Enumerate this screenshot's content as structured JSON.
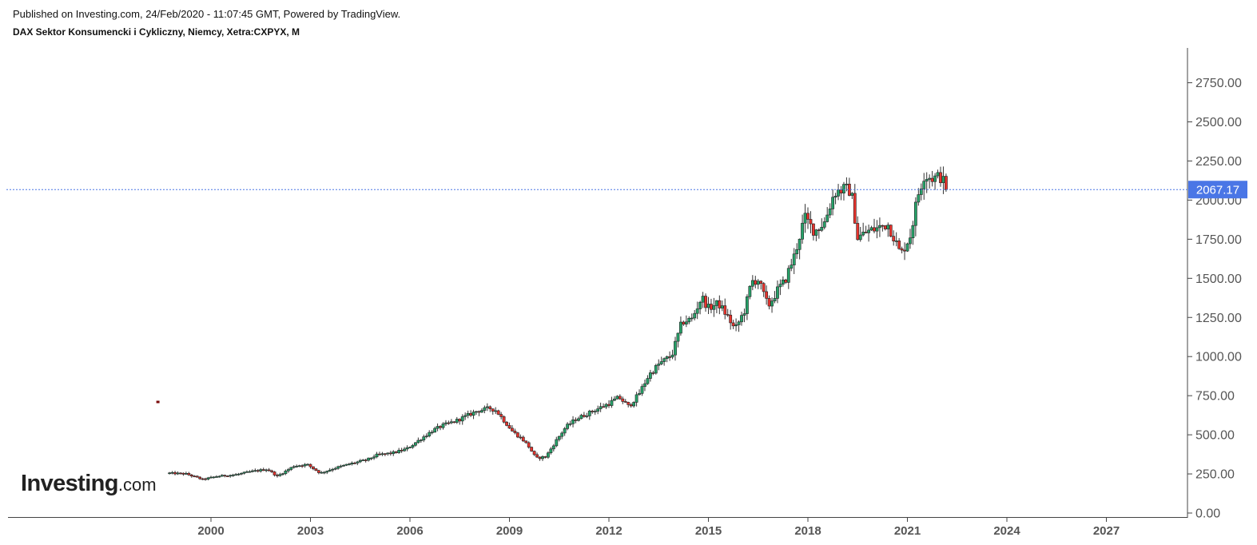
{
  "header": {
    "published": "Published on Investing.com, 24/Feb/2020 - 11:07:45 GMT, Powered by TradingView.",
    "symbol": "DAX Sektor Konsumencki i Cykliczny, Niemcy, Xetra:CXPYX, M"
  },
  "logo": {
    "brand": "Investing",
    "suffix": ".com"
  },
  "colors": {
    "up": "#26a269",
    "down": "#e8332d",
    "outline": "#000000",
    "price_line": "#4a76e6",
    "axis": "#444444"
  },
  "chart_data": {
    "type": "candlestick",
    "interval": "M",
    "last_price": 2067.17,
    "last_price_label": "2067.17",
    "ylim": [
      0,
      3000
    ],
    "y_ticks": [
      {
        "value": 0,
        "label": "0.00"
      },
      {
        "value": 250,
        "label": "250.00"
      },
      {
        "value": 500,
        "label": "500.00"
      },
      {
        "value": 750,
        "label": "750.00"
      },
      {
        "value": 1000,
        "label": "1000.00"
      },
      {
        "value": 1250,
        "label": "1250.00"
      },
      {
        "value": 1500,
        "label": "1500.00"
      },
      {
        "value": 1750,
        "label": "1750.00"
      },
      {
        "value": 2000,
        "label": "2000.00"
      },
      {
        "value": 2250,
        "label": "2250.00"
      },
      {
        "value": 2500,
        "label": "2500.00"
      },
      {
        "value": 2750,
        "label": "2750.00"
      }
    ],
    "x_ticks": [
      {
        "value": 2000,
        "label": "2000"
      },
      {
        "value": 2003,
        "label": "2003"
      },
      {
        "value": 2006,
        "label": "2006"
      },
      {
        "value": 2009,
        "label": "2009"
      },
      {
        "value": 2012,
        "label": "2012"
      },
      {
        "value": 2015,
        "label": "2015"
      },
      {
        "value": 2018,
        "label": "2018"
      },
      {
        "value": 2021,
        "label": "2021"
      },
      {
        "value": 2024,
        "label": "2024"
      },
      {
        "value": 2027,
        "label": "2027"
      }
    ],
    "xlim": [
      1993.9,
      2029.6
    ],
    "outlier": {
      "t": 1998.4,
      "value": 710
    },
    "anchors": [
      [
        1998.75,
        255
      ],
      [
        1999.25,
        250
      ],
      [
        1999.75,
        215
      ],
      [
        2000.2,
        235
      ],
      [
        2000.75,
        245
      ],
      [
        2001.2,
        265
      ],
      [
        2001.7,
        280
      ],
      [
        2002.0,
        235
      ],
      [
        2002.5,
        300
      ],
      [
        2002.9,
        310
      ],
      [
        2003.3,
        255
      ],
      [
        2003.7,
        285
      ],
      [
        2004.2,
        315
      ],
      [
        2004.7,
        340
      ],
      [
        2005.0,
        370
      ],
      [
        2005.5,
        385
      ],
      [
        2005.9,
        410
      ],
      [
        2006.3,
        470
      ],
      [
        2006.7,
        530
      ],
      [
        2007.0,
        560
      ],
      [
        2007.4,
        590
      ],
      [
        2007.7,
        620
      ],
      [
        2008.0,
        650
      ],
      [
        2008.4,
        670
      ],
      [
        2008.6,
        655
      ],
      [
        2008.8,
        600
      ],
      [
        2009.1,
        520
      ],
      [
        2009.4,
        470
      ],
      [
        2009.6,
        420
      ],
      [
        2009.8,
        350
      ],
      [
        2010.1,
        360
      ],
      [
        2010.4,
        460
      ],
      [
        2010.7,
        550
      ],
      [
        2011.0,
        600
      ],
      [
        2011.3,
        630
      ],
      [
        2011.6,
        660
      ],
      [
        2012.0,
        700
      ],
      [
        2012.3,
        740
      ],
      [
        2012.6,
        680
      ],
      [
        2012.9,
        760
      ],
      [
        2013.2,
        880
      ],
      [
        2013.5,
        950
      ],
      [
        2013.9,
        1010
      ],
      [
        2014.2,
        1220
      ],
      [
        2014.5,
        1240
      ],
      [
        2014.8,
        1380
      ],
      [
        2015.0,
        1310
      ],
      [
        2015.3,
        1340
      ],
      [
        2015.6,
        1250
      ],
      [
        2015.8,
        1170
      ],
      [
        2016.1,
        1300
      ],
      [
        2016.3,
        1480
      ],
      [
        2016.5,
        1490
      ],
      [
        2016.8,
        1320
      ],
      [
        2017.1,
        1430
      ],
      [
        2017.3,
        1480
      ],
      [
        2017.6,
        1650
      ],
      [
        2017.9,
        1890
      ],
      [
        2018.2,
        1800
      ],
      [
        2018.5,
        1860
      ],
      [
        2018.8,
        2050
      ],
      [
        2019.1,
        2070
      ],
      [
        2019.3,
        2060
      ],
      [
        2019.5,
        1760
      ],
      [
        2019.8,
        1800
      ],
      [
        2020.1,
        1820
      ],
      [
        2020.4,
        1850
      ],
      [
        2020.6,
        1760
      ],
      [
        2020.8,
        1650
      ],
      [
        2021.1,
        1780
      ],
      [
        2021.3,
        2020
      ],
      [
        2021.5,
        2160
      ],
      [
        2021.8,
        2140
      ],
      [
        2022.0,
        2150
      ],
      [
        2022.2,
        2067.17
      ]
    ]
  }
}
